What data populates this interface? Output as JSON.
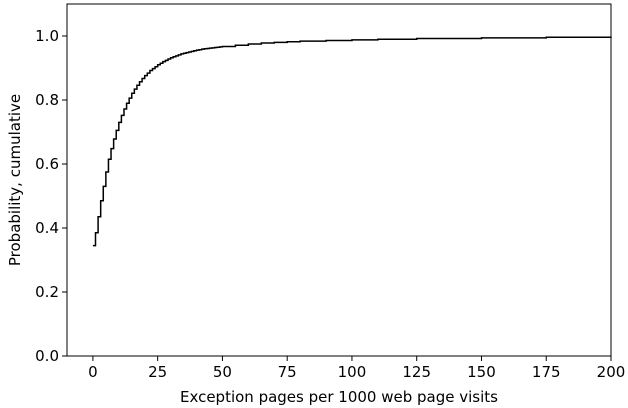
{
  "chart_data": {
    "type": "line",
    "step": true,
    "title": "",
    "xlabel": "Exception pages per 1000 web page visits",
    "ylabel": "Probability, cumulative",
    "xlim": [
      -10,
      200
    ],
    "ylim": [
      0,
      1.1
    ],
    "xticks": [
      0,
      25,
      50,
      75,
      100,
      125,
      150,
      175,
      200
    ],
    "yticks": [
      0.0,
      0.2,
      0.4,
      0.6,
      0.8,
      1.0
    ],
    "xtick_labels": [
      "0",
      "25",
      "50",
      "75",
      "100",
      "125",
      "150",
      "175",
      "200"
    ],
    "ytick_labels": [
      "0.0",
      "0.2",
      "0.4",
      "0.6",
      "0.8",
      "1.0"
    ],
    "grid": false,
    "series": [
      {
        "color": "#000000",
        "x": [
          0,
          1,
          2,
          3,
          4,
          5,
          6,
          7,
          8,
          9,
          10,
          11,
          12,
          13,
          14,
          15,
          16,
          17,
          18,
          19,
          20,
          21,
          22,
          23,
          24,
          25,
          26,
          27,
          28,
          29,
          30,
          31,
          32,
          33,
          34,
          35,
          36,
          37,
          38,
          39,
          40,
          41,
          42,
          43,
          44,
          45,
          46,
          47,
          48,
          49,
          50,
          55,
          60,
          65,
          70,
          75,
          80,
          90,
          100,
          110,
          125,
          150,
          175,
          200
        ],
        "y": [
          0.345,
          0.385,
          0.435,
          0.485,
          0.53,
          0.575,
          0.615,
          0.648,
          0.678,
          0.705,
          0.73,
          0.752,
          0.772,
          0.79,
          0.806,
          0.821,
          0.834,
          0.846,
          0.857,
          0.867,
          0.876,
          0.884,
          0.892,
          0.898,
          0.904,
          0.91,
          0.915,
          0.92,
          0.924,
          0.928,
          0.932,
          0.935,
          0.938,
          0.941,
          0.944,
          0.946,
          0.948,
          0.95,
          0.952,
          0.954,
          0.956,
          0.957,
          0.959,
          0.96,
          0.961,
          0.962,
          0.963,
          0.964,
          0.965,
          0.966,
          0.967,
          0.971,
          0.975,
          0.978,
          0.98,
          0.982,
          0.984,
          0.986,
          0.988,
          0.99,
          0.992,
          0.994,
          0.996,
          0.998
        ]
      }
    ]
  }
}
